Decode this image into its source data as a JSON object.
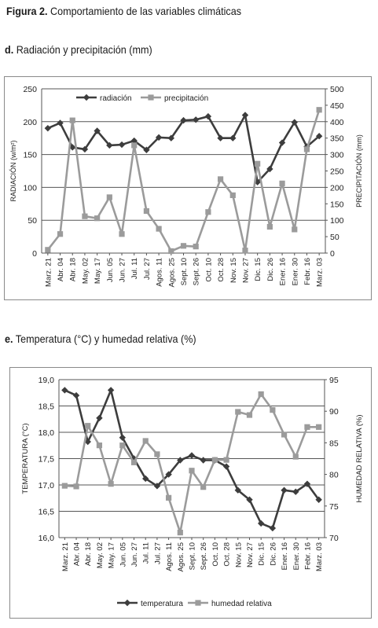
{
  "figure": {
    "label": "Figura 2.",
    "caption": "Comportamiento de las variables climáticas"
  },
  "colors": {
    "series_dark": "#3d3d3d",
    "series_light": "#9b9b9b",
    "grid": "#555555",
    "frame": "#8a8a8a"
  },
  "sections": [
    {
      "letter": "d.",
      "title": "Radiación y precipitación (mm)"
    },
    {
      "letter": "e.",
      "title": "Temperatura (°C) y humedad relativa (%)"
    }
  ],
  "chart_data": [
    {
      "type": "line",
      "title": "",
      "ylabel": "RADIACIÓN (w/m²)",
      "y2label": "PRECIPITACIÓN (mm)",
      "ylim": [
        0,
        250
      ],
      "yticks": [
        0,
        50,
        100,
        150,
        200,
        250
      ],
      "y2lim": [
        0,
        500
      ],
      "y2ticks": [
        0,
        50,
        100,
        150,
        200,
        250,
        300,
        350,
        400,
        450,
        500
      ],
      "grid": true,
      "legend": "top-left",
      "categories": [
        "Marz. 21",
        "Abr. 04",
        "Abr. 18",
        "May. 02",
        "May. 17",
        "Jun. 05",
        "Jun. 27",
        "Jul. 11",
        "Jul. 27",
        "Agos. 11",
        "Agos. 25",
        "Sept. 10",
        "Sept. 26",
        "Oct. 10",
        "Oct. 28",
        "Nov. 15",
        "Nov. 27",
        "Dic. 15",
        "Dic. 26",
        "Ener. 16",
        "Ener. 30",
        "Febr. 16",
        "Marz. 03"
      ],
      "series": [
        {
          "name": "radiación",
          "axis": "left",
          "style": "diamond",
          "color": "#3d3d3d",
          "values": [
            190,
            198,
            161,
            158,
            186,
            164,
            165,
            171,
            157,
            176,
            175,
            202,
            203,
            208,
            175,
            175,
            210,
            108,
            128,
            168,
            199,
            162,
            178
          ]
        },
        {
          "name": "precipitación",
          "axis": "right",
          "style": "square",
          "color": "#9b9b9b",
          "values": [
            10,
            58,
            404,
            112,
            106,
            170,
            58,
            328,
            128,
            74,
            6,
            22,
            20,
            125,
            225,
            176,
            8,
            272,
            80,
            212,
            72,
            316,
            436
          ]
        }
      ]
    },
    {
      "type": "line",
      "title": "",
      "ylabel": "TEMPERATURA (°C)",
      "y2label": "HUMEDAD RELATIVA (%)",
      "ylim": [
        16.0,
        19.0
      ],
      "yticks": [
        "16,0",
        "16,5",
        "17,0",
        "17,5",
        "18,0",
        "18,5",
        "19,0"
      ],
      "y2lim": [
        70,
        95
      ],
      "y2ticks": [
        70,
        75,
        80,
        85,
        90,
        95
      ],
      "grid": true,
      "legend": "bottom",
      "categories": [
        "Marz. 21",
        "Abr. 04",
        "Abr. 18",
        "May. 02",
        "May. 17",
        "Jun. 05",
        "Jun. 27",
        "Jul. 11",
        "Jul. 27",
        "Agos. 11",
        "Agos. 25",
        "Sept. 10",
        "Sept. 26",
        "Oct. 10",
        "Oct. 28",
        "Nov. 15",
        "Nov. 27",
        "Dic. 15",
        "Dic. 26",
        "Ener. 16",
        "Ener. 30",
        "Febr. 16",
        "Marz. 03"
      ],
      "series": [
        {
          "name": "temperatura",
          "axis": "left",
          "style": "diamond",
          "color": "#3d3d3d",
          "values": [
            18.8,
            18.7,
            17.82,
            18.27,
            18.8,
            17.9,
            17.5,
            17.12,
            16.98,
            17.2,
            17.47,
            17.56,
            17.47,
            17.47,
            17.35,
            16.9,
            16.72,
            16.27,
            16.18,
            16.9,
            16.87,
            17.02,
            16.72
          ]
        },
        {
          "name": "humedad relativa",
          "axis": "right",
          "style": "square",
          "color": "#9b9b9b",
          "values": [
            78.2,
            78.1,
            87.7,
            84.6,
            78.5,
            84.6,
            81.9,
            85.3,
            83.2,
            76.3,
            70.8,
            80.6,
            78.0,
            82.3,
            82.3,
            89.9,
            89.4,
            92.7,
            90.2,
            86.3,
            82.8,
            87.5,
            87.5
          ]
        }
      ]
    }
  ]
}
